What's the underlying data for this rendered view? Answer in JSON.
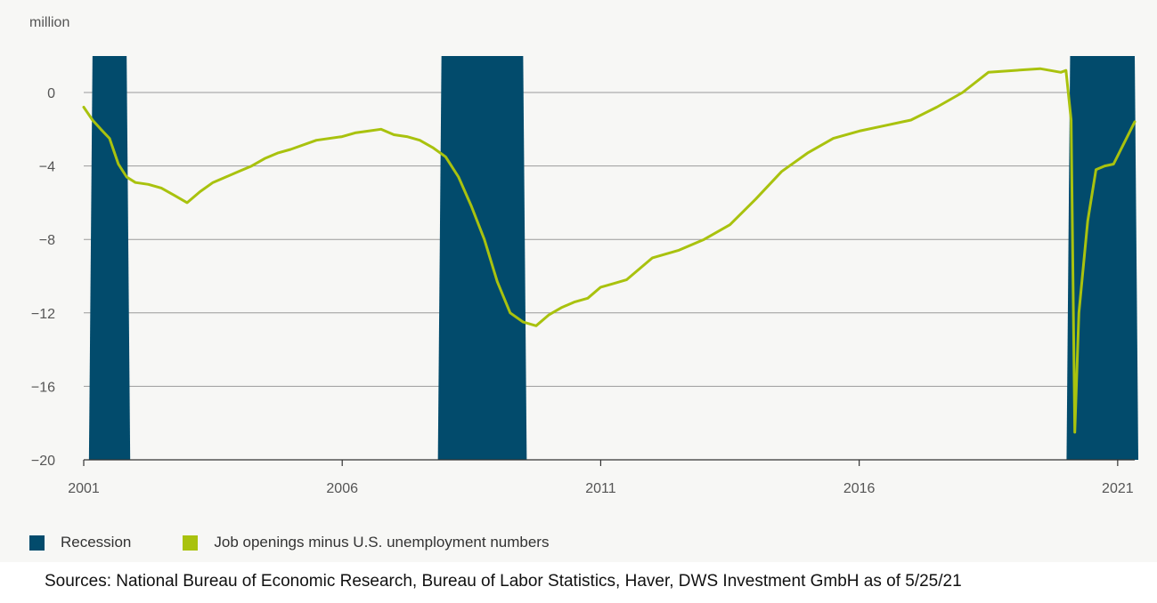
{
  "chart_data": {
    "type": "line",
    "unit_label": "million",
    "ylim": [
      -20,
      2
    ],
    "yticks": [
      0,
      -4,
      -8,
      -12,
      -16,
      -20
    ],
    "ytick_labels": [
      "0",
      "−4",
      "−8",
      "−12",
      "−16",
      "−20"
    ],
    "xlim": [
      2001.0,
      2021.33
    ],
    "xticks": [
      2001,
      2006,
      2011,
      2016,
      2021
    ],
    "xtick_labels": [
      "2001",
      "2006",
      "2011",
      "2016",
      "2021"
    ],
    "grid": true,
    "recessions": [
      {
        "start": 2001.17,
        "end": 2001.83
      },
      {
        "start": 2007.92,
        "end": 2009.5
      },
      {
        "start": 2020.08,
        "end": 2021.33
      }
    ],
    "series": [
      {
        "name": "Job openings minus U.S. unemployment numbers",
        "color": "#a9c20e",
        "x": [
          2001.0,
          2001.17,
          2001.33,
          2001.5,
          2001.67,
          2001.83,
          2002.0,
          2002.25,
          2002.5,
          2002.75,
          2003.0,
          2003.25,
          2003.5,
          2003.75,
          2004.0,
          2004.25,
          2004.5,
          2004.75,
          2005.0,
          2005.5,
          2006.0,
          2006.25,
          2006.5,
          2006.75,
          2007.0,
          2007.25,
          2007.5,
          2007.75,
          2008.0,
          2008.25,
          2008.5,
          2008.75,
          2009.0,
          2009.25,
          2009.5,
          2009.75,
          2010.0,
          2010.25,
          2010.5,
          2010.75,
          2011.0,
          2011.25,
          2011.5,
          2012.0,
          2012.5,
          2013.0,
          2013.5,
          2014.0,
          2014.5,
          2015.0,
          2015.5,
          2016.0,
          2016.5,
          2017.0,
          2017.5,
          2018.0,
          2018.5,
          2019.0,
          2019.5,
          2019.9,
          2020.0,
          2020.1,
          2020.17,
          2020.25,
          2020.42,
          2020.58,
          2020.75,
          2020.92,
          2021.08,
          2021.33
        ],
        "values": [
          -0.8,
          -1.5,
          -2.0,
          -2.5,
          -3.9,
          -4.6,
          -4.9,
          -5.0,
          -5.2,
          -5.6,
          -6.0,
          -5.4,
          -4.9,
          -4.6,
          -4.3,
          -4.0,
          -3.6,
          -3.3,
          -3.1,
          -2.6,
          -2.4,
          -2.2,
          -2.1,
          -2.0,
          -2.3,
          -2.4,
          -2.6,
          -3.0,
          -3.5,
          -4.6,
          -6.2,
          -8.0,
          -10.3,
          -12.0,
          -12.5,
          -12.7,
          -12.1,
          -11.7,
          -11.4,
          -11.2,
          -10.6,
          -10.4,
          -10.2,
          -9.0,
          -8.6,
          -8.0,
          -7.2,
          -5.8,
          -4.3,
          -3.3,
          -2.5,
          -2.1,
          -1.8,
          -1.5,
          -0.8,
          0.0,
          1.1,
          1.2,
          1.3,
          1.1,
          1.2,
          -1.5,
          -18.5,
          -12.0,
          -7.0,
          -4.2,
          -4.0,
          -3.9,
          -3.0,
          -1.6
        ]
      }
    ],
    "legend": [
      {
        "label": "Recession",
        "color": "#024b6c"
      },
      {
        "label": "Job openings minus U.S. unemployment numbers",
        "color": "#a9c20e"
      }
    ]
  },
  "source": "Sources: National Bureau of Economic Research, Bureau of Labor Statistics, Haver, DWS Investment GmbH as of 5/25/21"
}
